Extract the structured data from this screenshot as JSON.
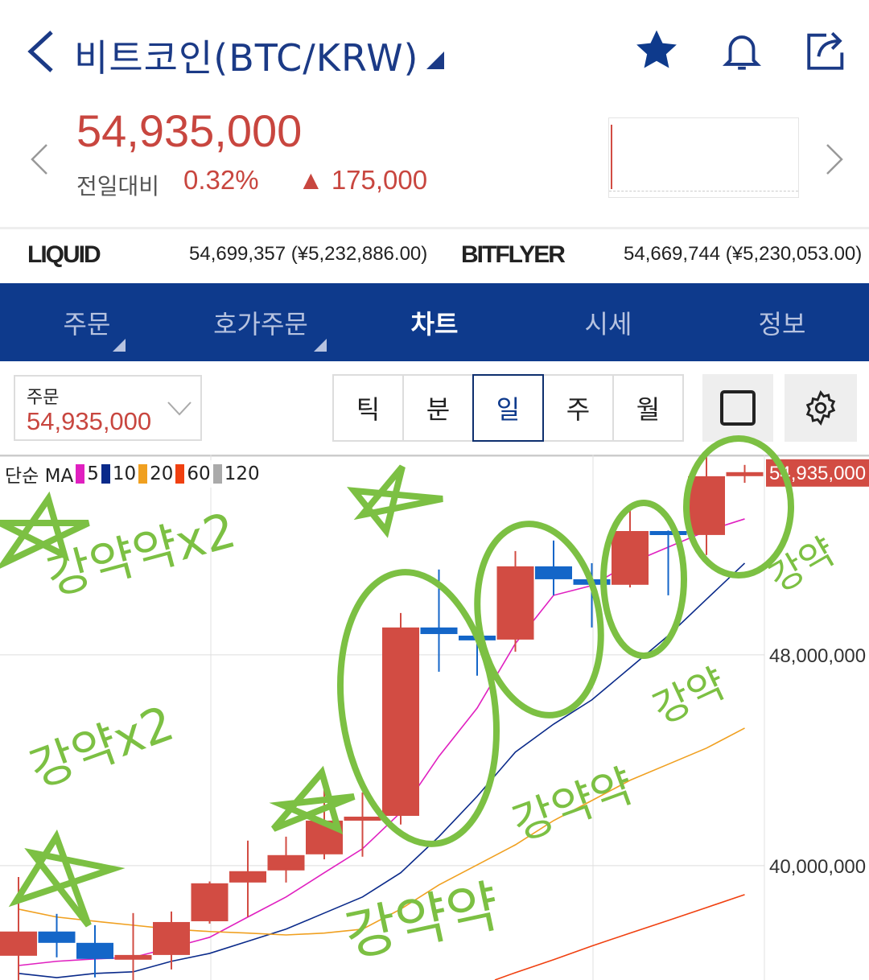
{
  "header": {
    "title": "비트코인(BTC/KRW)",
    "icons": [
      "back-chevron-icon",
      "dropdown-triangle-icon",
      "star-icon",
      "bell-icon",
      "share-icon"
    ]
  },
  "quote": {
    "price": "54,935,000",
    "change_label": "전일대비",
    "change_pct": "0.32%",
    "change_abs": "▲ 175,000"
  },
  "exchanges": [
    {
      "name": "LIQUID",
      "value": "54,699,357 (¥5,232,886.00)"
    },
    {
      "name": "BITFLYER",
      "value": "54,669,744 (¥5,230,053.00)"
    }
  ],
  "tabs": [
    {
      "label": "주문",
      "has_menu": true
    },
    {
      "label": "호가주문",
      "has_menu": true
    },
    {
      "label": "차트",
      "active": true
    },
    {
      "label": "시세"
    },
    {
      "label": "정보"
    }
  ],
  "order_select": {
    "label": "주문",
    "value": "54,935,000"
  },
  "periods": [
    {
      "label": "틱"
    },
    {
      "label": "분"
    },
    {
      "label": "일",
      "active": true
    },
    {
      "label": "주"
    },
    {
      "label": "월"
    }
  ],
  "colors": {
    "up": "#d24c43",
    "down": "#1466c8",
    "nav": "#0e3a8c",
    "annotation": "#7cc043"
  },
  "chart_data": {
    "type": "candlestick",
    "legend": {
      "prefix": "단순 MA",
      "items": [
        {
          "name": "5",
          "color": "#e020c0"
        },
        {
          "name": "10",
          "color": "#0a2a8a"
        },
        {
          "name": "20",
          "color": "#f0a020"
        },
        {
          "name": "60",
          "color": "#f04010"
        },
        {
          "name": "120",
          "color": "#aaaaaa"
        }
      ]
    },
    "ylim": [
      35660000,
      55540000
    ],
    "yticks": [
      {
        "value": 48000000,
        "label": "48,000,000"
      },
      {
        "value": 40000000,
        "label": "40,000,000"
      }
    ],
    "last_price_label": "54,935,000",
    "candles": [
      {
        "o": 36.58,
        "h": 39.57,
        "l": 35.66,
        "c": 37.5
      },
      {
        "o": 37.5,
        "h": 38.17,
        "l": 36.52,
        "c": 37.07
      },
      {
        "o": 37.07,
        "h": 37.74,
        "l": 35.76,
        "c": 36.46
      },
      {
        "o": 36.43,
        "h": 38.2,
        "l": 35.66,
        "c": 36.61
      },
      {
        "o": 36.61,
        "h": 38.26,
        "l": 36.06,
        "c": 37.86
      },
      {
        "o": 37.89,
        "h": 39.4,
        "l": 37.8,
        "c": 39.33
      },
      {
        "o": 39.36,
        "h": 40.95,
        "l": 38.05,
        "c": 39.79
      },
      {
        "o": 39.82,
        "h": 41.1,
        "l": 39.36,
        "c": 40.4
      },
      {
        "o": 40.43,
        "h": 43.08,
        "l": 40.24,
        "c": 41.71
      },
      {
        "o": 41.71,
        "h": 42.78,
        "l": 40.34,
        "c": 41.86
      },
      {
        "o": 41.89,
        "h": 49.59,
        "l": 41.56,
        "c": 49.04
      },
      {
        "o": 49.04,
        "h": 51.24,
        "l": 47.36,
        "c": 48.79
      },
      {
        "o": 48.73,
        "h": 48.8,
        "l": 47.21,
        "c": 48.55
      },
      {
        "o": 48.58,
        "h": 51.94,
        "l": 48.12,
        "c": 51.36
      },
      {
        "o": 51.36,
        "h": 52.34,
        "l": 50.26,
        "c": 50.87
      },
      {
        "o": 50.87,
        "h": 51.48,
        "l": 49.04,
        "c": 50.66
      },
      {
        "o": 50.66,
        "h": 53.62,
        "l": 50.56,
        "c": 52.7
      },
      {
        "o": 52.7,
        "h": 52.72,
        "l": 50.26,
        "c": 52.55
      },
      {
        "o": 52.55,
        "h": 55.54,
        "l": 51.79,
        "c": 54.78
      },
      {
        "o": 54.81,
        "h": 55.21,
        "l": 54.53,
        "c": 54.935
      }
    ],
    "unit": "millions KRW",
    "ma": {
      "5": [
        36.21,
        36.37,
        36.46,
        36.52,
        36.89,
        37.28,
        38.05,
        38.81,
        39.73,
        40.64,
        42.02,
        44.15,
        45.98,
        48.43,
        50.26,
        50.63,
        51.48,
        52.09,
        52.7,
        53.16
      ],
      "10": [
        35.91,
        35.75,
        35.91,
        35.97,
        36.37,
        36.67,
        37.13,
        37.59,
        38.2,
        38.81,
        39.73,
        41.1,
        42.63,
        44.31,
        45.37,
        46.29,
        47.51,
        48.73,
        50.11,
        51.48
      ],
      "20": [
        38.35,
        38.05,
        37.89,
        37.74,
        37.59,
        37.5,
        37.44,
        37.37,
        37.44,
        37.59,
        38.35,
        39.27,
        40.03,
        40.79,
        41.71,
        42.47,
        43.24,
        43.85,
        44.46,
        45.22
      ],
      "60": [
        null,
        null,
        null,
        null,
        null,
        null,
        null,
        null,
        null,
        null,
        null,
        null,
        null,
        35.94,
        36.43,
        36.95,
        37.44,
        37.92,
        38.41,
        38.9
      ]
    }
  },
  "annotations": [
    "강약약x2",
    "강약x2",
    "강약약",
    "강약약",
    "강약",
    "강약"
  ]
}
